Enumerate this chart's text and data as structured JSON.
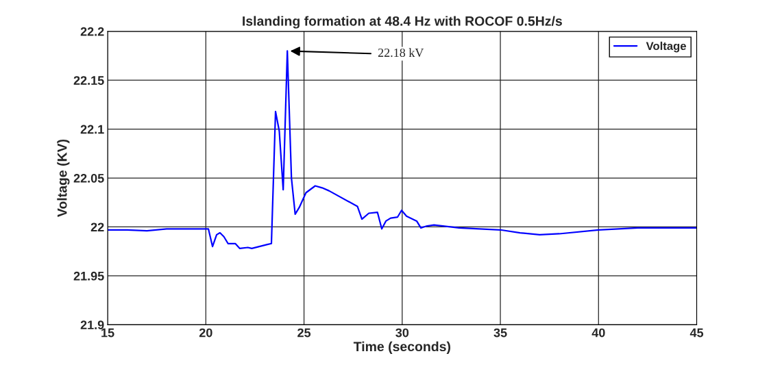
{
  "chart_data": {
    "type": "line",
    "title": "Islanding formation at 48.4 Hz with ROCOF 0.5Hz/s",
    "xlabel": "Time (seconds)",
    "ylabel": "Voltage (KV)",
    "series": [
      {
        "name": "Voltage",
        "color": "#0000ff",
        "x": [
          15,
          16,
          17,
          18,
          19,
          20.13,
          20.34,
          20.55,
          20.72,
          20.92,
          21.13,
          21.5,
          21.73,
          22.14,
          22.34,
          22.72,
          23.13,
          23.34,
          23.55,
          23.74,
          23.94,
          24.15,
          24.36,
          24.55,
          24.76,
          25.1,
          25.57,
          25.92,
          26.27,
          27.72,
          27.95,
          28.3,
          28.74,
          28.96,
          29.17,
          29.41,
          29.76,
          29.97,
          30.22,
          30.74,
          30.95,
          31.27,
          31.62,
          32.9,
          35,
          36,
          37,
          38,
          40,
          42,
          45
        ],
        "values": [
          21.997,
          21.997,
          21.996,
          21.998,
          21.998,
          21.998,
          21.98,
          21.992,
          21.994,
          21.99,
          21.983,
          21.983,
          21.978,
          21.979,
          21.978,
          21.98,
          21.982,
          21.983,
          22.118,
          22.098,
          22.038,
          22.18,
          22.05,
          22.013,
          22.02,
          22.035,
          22.042,
          22.04,
          22.037,
          22.021,
          22.008,
          22.014,
          22.015,
          21.998,
          22.006,
          22.009,
          22.01,
          22.017,
          22.011,
          22.006,
          21.999,
          22.001,
          22.002,
          21.999,
          21.997,
          21.994,
          21.992,
          21.993,
          21.997,
          21.999,
          21.999
        ]
      }
    ],
    "xlim": [
      15,
      45
    ],
    "xticks": [
      15,
      20,
      25,
      30,
      35,
      40,
      45
    ],
    "ylim": [
      21.9,
      22.2
    ],
    "yticks": [
      {
        "value": 21.9,
        "label": "21.9"
      },
      {
        "value": 21.95,
        "label": "21.95"
      },
      {
        "value": 22,
        "label": "22"
      },
      {
        "value": 22.05,
        "label": "22.05"
      },
      {
        "value": 22.1,
        "label": "22.1"
      },
      {
        "value": 22.15,
        "label": "22.15"
      },
      {
        "value": 22.2,
        "label": "22.2"
      }
    ],
    "grid": true,
    "legend": "top right",
    "marker": "none",
    "line_style": "solid",
    "annotations": [
      {
        "text": "22.18 kV",
        "x": 24.15,
        "y": 22.18
      }
    ]
  }
}
